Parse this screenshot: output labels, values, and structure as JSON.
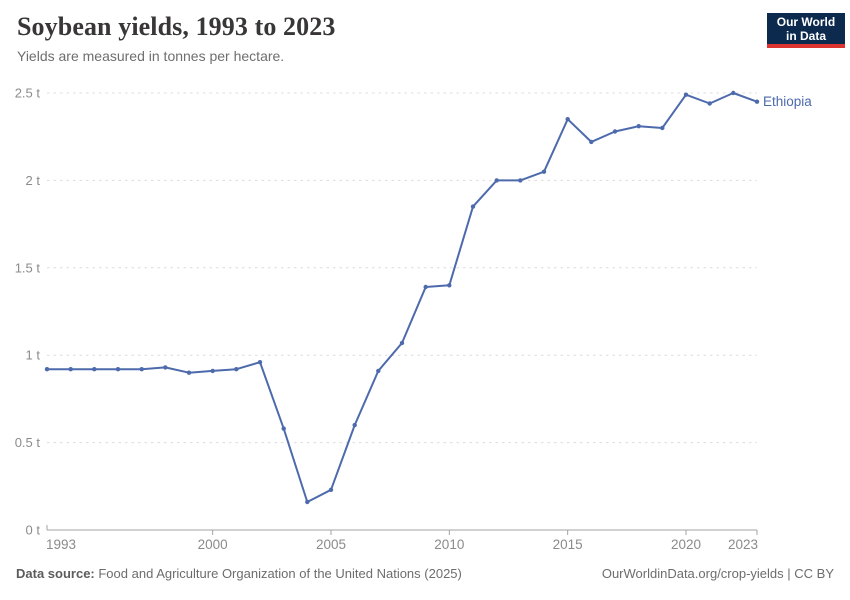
{
  "header": {
    "title": "Soybean yields, 1993 to 2023",
    "subtitle": "Yields are measured in tonnes per hectare.",
    "logo": {
      "line1": "Our World",
      "line2": "in Data"
    }
  },
  "footer": {
    "source_label": "Data source:",
    "source_text": " Food and Agriculture Organization of the United Nations (2025)",
    "attribution": "OurWorldinData.org/crop-yields | CC BY"
  },
  "colors": {
    "series": "#4d6aac",
    "gridline": "#dcdcdc",
    "axis": "#a3a3a3",
    "tick_label": "#8b8b8b",
    "logo_bg": "#0b2a4e",
    "logo_red": "#dc342e"
  },
  "chart_data": {
    "type": "line",
    "title": "Soybean yields, 1993 to 2023",
    "subtitle": "Yields are measured in tonnes per hectare.",
    "xlabel": "",
    "ylabel": "tonnes per hectare",
    "unit_suffix": " t",
    "x": [
      1993,
      1994,
      1995,
      1996,
      1997,
      1998,
      1999,
      2000,
      2001,
      2002,
      2003,
      2004,
      2005,
      2006,
      2007,
      2008,
      2009,
      2010,
      2011,
      2012,
      2013,
      2014,
      2015,
      2016,
      2017,
      2018,
      2019,
      2020,
      2021,
      2022,
      2023
    ],
    "series": [
      {
        "name": "Ethiopia",
        "values": [
          0.92,
          0.92,
          0.92,
          0.92,
          0.92,
          0.93,
          0.9,
          0.91,
          0.92,
          0.96,
          0.58,
          0.16,
          0.23,
          0.6,
          0.91,
          1.07,
          1.39,
          1.4,
          1.85,
          2.0,
          2.0,
          2.05,
          2.35,
          2.22,
          2.28,
          2.31,
          2.3,
          2.49,
          2.44,
          2.5,
          2.45
        ]
      }
    ],
    "xlim": [
      1993,
      2023
    ],
    "ylim": [
      0,
      2.5
    ],
    "yticks": [
      0,
      0.5,
      1,
      1.5,
      2,
      2.5
    ],
    "xticks": [
      1993,
      2000,
      2005,
      2010,
      2015,
      2020,
      2023
    ],
    "grid": true,
    "legend_position": "line-end-label"
  }
}
